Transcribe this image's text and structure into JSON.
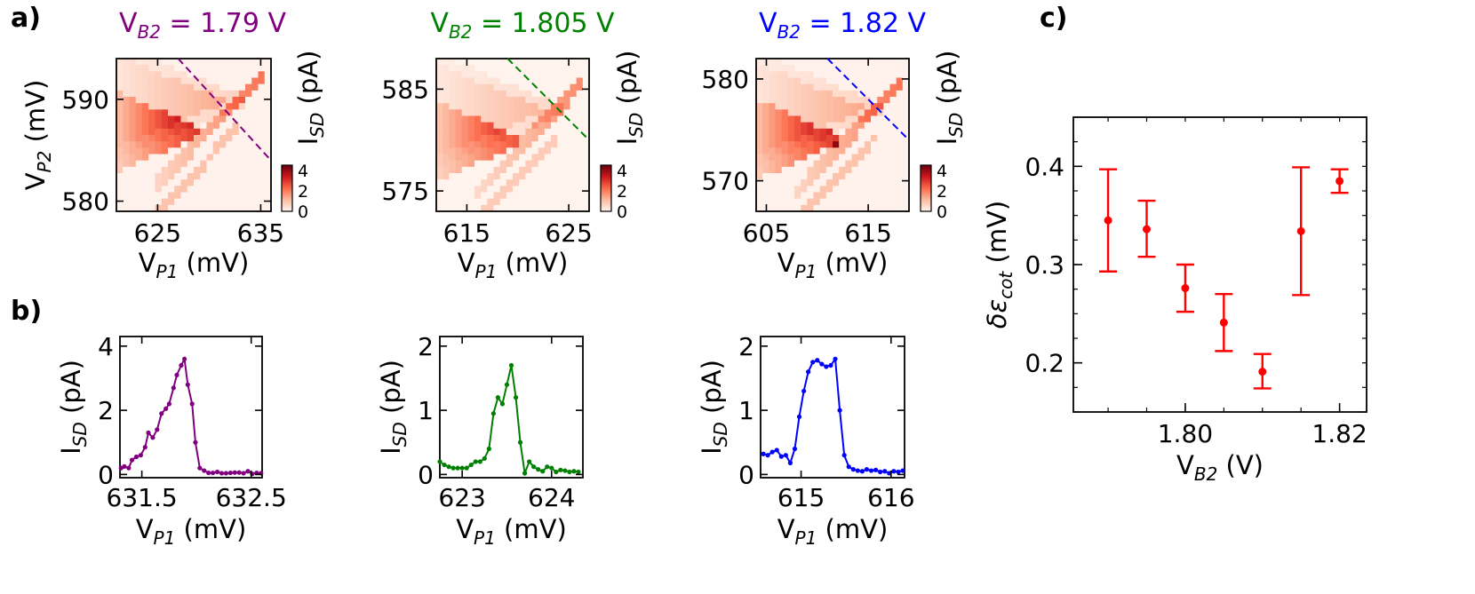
{
  "panels": {
    "a": "a)",
    "b": "b)",
    "c": "c)"
  },
  "chart_data": [
    {
      "type": "heatmap",
      "panel": "a1",
      "title_parts": [
        "V",
        "B2",
        " = 1.79 V"
      ],
      "title_color": "#800080",
      "xlabel_parts": [
        "V",
        "P1",
        " (mV)"
      ],
      "ylabel_parts": [
        "V",
        "P2",
        " (mV)"
      ],
      "cbar_label_parts": [
        "I",
        "SD",
        " (pA)"
      ],
      "xlim": [
        621,
        636
      ],
      "ylim": [
        579,
        594
      ],
      "xticks": [
        "625",
        "635"
      ],
      "yticks": [
        "580",
        "590"
      ],
      "cbar_range": [
        0,
        4.5
      ],
      "cbar_ticks": [
        "4",
        "2",
        "0"
      ],
      "cut_line": {
        "x": [
          627,
          636
        ],
        "y": [
          594,
          584
        ]
      }
    },
    {
      "type": "heatmap",
      "panel": "a2",
      "title_parts": [
        "V",
        "B2",
        " = 1.805 V"
      ],
      "title_color": "#008000",
      "xlabel_parts": [
        "V",
        "P1",
        " (mV)"
      ],
      "ylabel_parts": [
        "V",
        "P2",
        " (mV)"
      ],
      "cbar_label_parts": [
        "I",
        "SD",
        " (pA)"
      ],
      "xlim": [
        612,
        627
      ],
      "ylim": [
        573,
        588
      ],
      "xticks": [
        "615",
        "625"
      ],
      "yticks": [
        "575",
        "585"
      ],
      "cbar_range": [
        0,
        4.5
      ],
      "cbar_ticks": [
        "4",
        "2",
        "0"
      ],
      "cut_line": {
        "x": [
          619,
          627
        ],
        "y": [
          588,
          580
        ]
      }
    },
    {
      "type": "heatmap",
      "panel": "a3",
      "title_parts": [
        "V",
        "B2",
        " = 1.82 V"
      ],
      "title_color": "#0000ff",
      "xlabel_parts": [
        "V",
        "P1",
        " (mV)"
      ],
      "ylabel_parts": [
        "V",
        "P2",
        " (mV)"
      ],
      "cbar_label_parts": [
        "I",
        "SD",
        " (pA)"
      ],
      "xlim": [
        604,
        619
      ],
      "ylim": [
        567,
        582
      ],
      "xticks": [
        "605",
        "615"
      ],
      "yticks": [
        "570",
        "580"
      ],
      "cbar_range": [
        0,
        4.5
      ],
      "cbar_ticks": [
        "4",
        "2",
        "0"
      ],
      "cut_line": {
        "x": [
          611,
          619
        ],
        "y": [
          582,
          574
        ]
      }
    },
    {
      "type": "line",
      "panel": "b1",
      "color": "#800080",
      "xlabel_parts": [
        "V",
        "P1",
        " (mV)"
      ],
      "ylabel_parts": [
        "I",
        "SD",
        " (pA)"
      ],
      "xlim": [
        631.3,
        632.6
      ],
      "ylim": [
        -0.1,
        4.3
      ],
      "xticks": [
        631.5,
        632.5
      ],
      "xtick_labels": [
        "631.5",
        "632.5"
      ],
      "yticks": [
        0,
        2,
        4
      ],
      "ytick_labels": [
        "0",
        "2",
        "4"
      ],
      "x": [
        631.31,
        631.34,
        631.38,
        631.41,
        631.45,
        631.49,
        631.53,
        631.56,
        631.6,
        631.64,
        631.68,
        631.72,
        631.75,
        631.79,
        631.82,
        631.86,
        631.89,
        631.92,
        631.96,
        631.99,
        632.03,
        632.07,
        632.11,
        632.15,
        632.19,
        632.23,
        632.27,
        632.31,
        632.35,
        632.39,
        632.43,
        632.47,
        632.51,
        632.55,
        632.59
      ],
      "y": [
        0.2,
        0.25,
        0.2,
        0.45,
        0.55,
        0.6,
        0.85,
        1.3,
        1.15,
        1.4,
        1.9,
        2.05,
        2.2,
        2.7,
        3.1,
        3.4,
        3.6,
        2.8,
        2.2,
        1.0,
        0.2,
        0.12,
        0.05,
        0.05,
        0.08,
        0.04,
        0.04,
        0.05,
        0.06,
        0.06,
        0.04,
        0.1,
        0.02,
        0.05,
        0.04
      ]
    },
    {
      "type": "line",
      "panel": "b2",
      "color": "#008000",
      "xlabel_parts": [
        "V",
        "P1",
        " (mV)"
      ],
      "ylabel_parts": [
        "I",
        "SD",
        " (pA)"
      ],
      "xlim": [
        622.75,
        624.35
      ],
      "ylim": [
        -0.05,
        2.15
      ],
      "xticks": [
        623,
        624
      ],
      "xtick_labels": [
        "623",
        "624"
      ],
      "yticks": [
        0,
        1,
        2
      ],
      "ytick_labels": [
        "0",
        "1",
        "2"
      ],
      "x": [
        622.75,
        622.8,
        622.85,
        622.9,
        622.95,
        623.0,
        623.05,
        623.1,
        623.15,
        623.2,
        623.25,
        623.3,
        623.35,
        623.4,
        623.45,
        623.5,
        623.55,
        623.6,
        623.65,
        623.7,
        623.75,
        623.8,
        623.85,
        623.9,
        623.95,
        624.0,
        624.05,
        624.1,
        624.15,
        624.2,
        624.25,
        624.3
      ],
      "y": [
        0.2,
        0.15,
        0.12,
        0.1,
        0.1,
        0.1,
        0.1,
        0.15,
        0.2,
        0.2,
        0.25,
        0.4,
        0.95,
        1.2,
        1.1,
        1.4,
        1.7,
        1.2,
        0.5,
        0.02,
        0.2,
        0.12,
        0.08,
        0.05,
        0.12,
        0.1,
        0.04,
        0.07,
        0.06,
        0.04,
        0.05,
        0.04
      ]
    },
    {
      "type": "line",
      "panel": "b3",
      "color": "#0000ff",
      "xlabel_parts": [
        "V",
        "P1",
        " (mV)"
      ],
      "ylabel_parts": [
        "I",
        "SD",
        " (pA)"
      ],
      "xlim": [
        614.55,
        616.15
      ],
      "ylim": [
        -0.05,
        2.15
      ],
      "xticks": [
        615,
        616
      ],
      "xtick_labels": [
        "615",
        "616"
      ],
      "yticks": [
        0,
        1,
        2
      ],
      "ytick_labels": [
        "0",
        "1",
        "2"
      ],
      "x": [
        614.58,
        614.63,
        614.68,
        614.73,
        614.78,
        614.83,
        614.88,
        614.93,
        614.98,
        615.03,
        615.08,
        615.13,
        615.18,
        615.23,
        615.28,
        615.33,
        615.38,
        615.43,
        615.48,
        615.53,
        615.58,
        615.63,
        615.68,
        615.73,
        615.78,
        615.83,
        615.88,
        615.93,
        615.98,
        616.03,
        616.08,
        616.13
      ],
      "y": [
        0.32,
        0.3,
        0.35,
        0.38,
        0.28,
        0.3,
        0.18,
        0.4,
        0.9,
        1.3,
        1.6,
        1.75,
        1.78,
        1.72,
        1.68,
        1.7,
        1.8,
        1.0,
        0.3,
        0.12,
        0.08,
        0.06,
        0.05,
        0.08,
        0.06,
        0.07,
        0.04,
        0.05,
        0.02,
        0.05,
        0.04,
        0.06
      ]
    },
    {
      "type": "errorbar",
      "panel": "c",
      "color": "#ff0000",
      "xlabel_parts": [
        "V",
        "B2",
        " (V)"
      ],
      "ylabel": "δε",
      "ylabel_sub": "cot",
      "ylabel_suffix": " (mV)",
      "xlim": [
        1.7855,
        1.8235
      ],
      "ylim": [
        0.15,
        0.45
      ],
      "xticks": [
        1.8,
        1.82
      ],
      "xtick_labels": [
        "1.80",
        "1.82"
      ],
      "yticks": [
        0.2,
        0.3,
        0.4
      ],
      "ytick_labels": [
        "0.2",
        "0.3",
        "0.4"
      ],
      "x": [
        1.79,
        1.795,
        1.8,
        1.805,
        1.81,
        1.815,
        1.82
      ],
      "y": [
        0.345,
        0.336,
        0.276,
        0.241,
        0.191,
        0.334,
        0.385
      ],
      "err_low": [
        0.293,
        0.308,
        0.252,
        0.212,
        0.174,
        0.269,
        0.373
      ],
      "err_high": [
        0.397,
        0.365,
        0.3,
        0.27,
        0.209,
        0.399,
        0.397
      ]
    }
  ]
}
